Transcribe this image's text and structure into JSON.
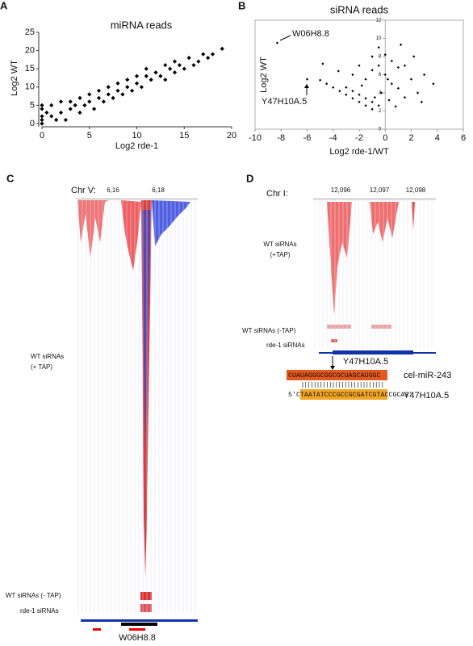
{
  "chart_data": [
    {
      "type": "scatter",
      "label": "A",
      "title": "miRNA reads",
      "xlabel": "Log2 rde-1",
      "ylabel": "Log2 WT",
      "color": "#000000",
      "x": [
        0,
        0,
        0,
        0,
        0,
        0.5,
        1,
        1,
        1.5,
        2,
        2,
        2.5,
        3,
        3,
        3.5,
        4,
        4,
        4.5,
        5,
        5,
        5.5,
        6,
        6,
        6.5,
        7,
        7,
        7.5,
        8,
        8,
        8.5,
        9,
        9,
        9.5,
        10,
        10,
        10.5,
        11,
        11,
        11.5,
        12,
        12.5,
        13,
        13,
        13.5,
        14,
        14,
        14.5,
        15,
        15.5,
        16,
        16.5,
        17,
        17.5,
        18,
        19
      ],
      "y": [
        0,
        1,
        2,
        4,
        5,
        3,
        2,
        5,
        1,
        3,
        6,
        1,
        4,
        6,
        5,
        3,
        7,
        5,
        6,
        8,
        4,
        7,
        9,
        6,
        8,
        10,
        7,
        9,
        11,
        8,
        10,
        12,
        9,
        11,
        13,
        10,
        13,
        15,
        12,
        14,
        13,
        16,
        12,
        15,
        17,
        14,
        16,
        15,
        18,
        16,
        17,
        19,
        18,
        19,
        20.5
      ],
      "xlim": [
        0,
        20
      ],
      "ylim": [
        0,
        25
      ],
      "xticks": [
        0,
        5,
        10,
        15,
        20
      ],
      "yticks": [
        0,
        5,
        10,
        15,
        20,
        25
      ]
    },
    {
      "type": "scatter",
      "label": "B",
      "title": "siRNA reads",
      "xlabel": "Log2 rde-1/WT",
      "ylabel": "Log2 WT",
      "color": "#000000",
      "x": [
        -5,
        -4.5,
        -4,
        -3.5,
        -3,
        -2.5,
        -2,
        -1.5,
        -1,
        -3,
        -2.5,
        -2,
        -1.5,
        -1,
        -0.5,
        -8.3,
        -6,
        -4.8,
        -3.6,
        -2.5,
        -2,
        -1.5,
        -1,
        -1,
        -0.5,
        -0.5,
        0,
        0,
        0.5,
        0.5,
        1,
        1,
        1.5,
        1.5,
        2,
        2.2,
        2.5,
        3,
        3.7,
        -0.3,
        0.3,
        0.8,
        -1.8,
        1.2,
        -0.8,
        2.8,
        0.2
      ],
      "y": [
        5.4,
        5,
        4.6,
        4.2,
        3.8,
        3.4,
        3,
        2.6,
        2.2,
        4.6,
        4.2,
        3.8,
        3.4,
        3,
        2.6,
        9.5,
        5.5,
        7.2,
        6.4,
        6,
        7,
        5.5,
        8,
        6.5,
        9,
        7,
        6,
        8.2,
        7.5,
        5,
        6.8,
        4.5,
        7,
        3.5,
        5.5,
        8,
        4,
        6,
        5,
        4,
        3.2,
        2.5,
        4.8,
        9.3,
        3.5,
        3,
        5.5
      ],
      "xlim": [
        -10,
        6
      ],
      "ylim": [
        0,
        12
      ],
      "xticks": [
        -10,
        -8,
        -6,
        -4,
        -2,
        0,
        2,
        4,
        6
      ],
      "yticks": [
        0,
        2,
        4,
        6,
        8,
        10,
        12
      ],
      "annotations": [
        "W06H8.8",
        "Y47H10A.5"
      ]
    }
  ],
  "panel_c": {
    "label": "C",
    "chromosome": "Chr V:",
    "coordinates": [
      "6,16",
      "6,18"
    ],
    "track_labels": [
      [
        "WT siRNAs",
        "(+ TAP)"
      ],
      [
        "WT siRNAs (- TAP)"
      ],
      [
        "rde-1 siRNAs"
      ]
    ],
    "gene": "W06H8.8"
  },
  "panel_d": {
    "label": "D",
    "chromosome": "Chr I:",
    "coordinates": [
      "12,096",
      "12,097",
      "12,098"
    ],
    "track_labels": [
      [
        "WT siRNAs",
        "(+TAP)"
      ],
      [
        "WT siRNAs (-TAP)"
      ],
      [
        "rde-1 siRNAs"
      ]
    ],
    "gene": "Y47H10A.5",
    "alignment": {
      "mirna_sequence": "CUAUAGGGCGGCGCUAGCAUGGC",
      "mirna_name": "cel-miR-243",
      "target_sequence": "5'CTAATATCCCGCCGCGATCGTACCGCA3'",
      "target_name": "Y47H10A.5"
    }
  }
}
